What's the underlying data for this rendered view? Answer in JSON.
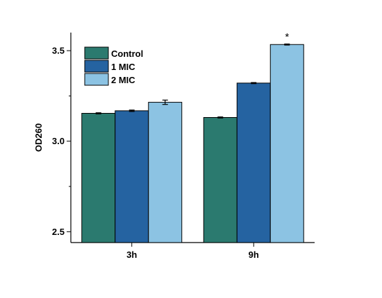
{
  "chart_data": {
    "type": "bar",
    "title": "",
    "xlabel": "",
    "ylabel": "OD260",
    "categories": [
      "3h",
      "9h"
    ],
    "series": [
      {
        "name": "Control",
        "values": [
          3.154,
          3.131
        ],
        "errors": [
          0.003,
          0.003
        ],
        "color": "#2b7a6f"
      },
      {
        "name": "1 MIC",
        "values": [
          3.168,
          3.321
        ],
        "errors": [
          0.004,
          0.003
        ],
        "color": "#2563a1"
      },
      {
        "name": "2 MIC",
        "values": [
          3.215,
          3.534
        ],
        "errors": [
          0.012,
          0.003
        ],
        "color": "#8cc3e3"
      }
    ],
    "ylim": [
      2.44,
      3.6
    ],
    "yticks": [
      2.5,
      3.0,
      3.5
    ],
    "ytick_labels": [
      "2.5",
      "3.0",
      "3.5"
    ],
    "legend_position": "top-left",
    "grid": false,
    "annotations": [
      {
        "text": "*",
        "category": "9h",
        "series": "2 MIC"
      }
    ]
  }
}
